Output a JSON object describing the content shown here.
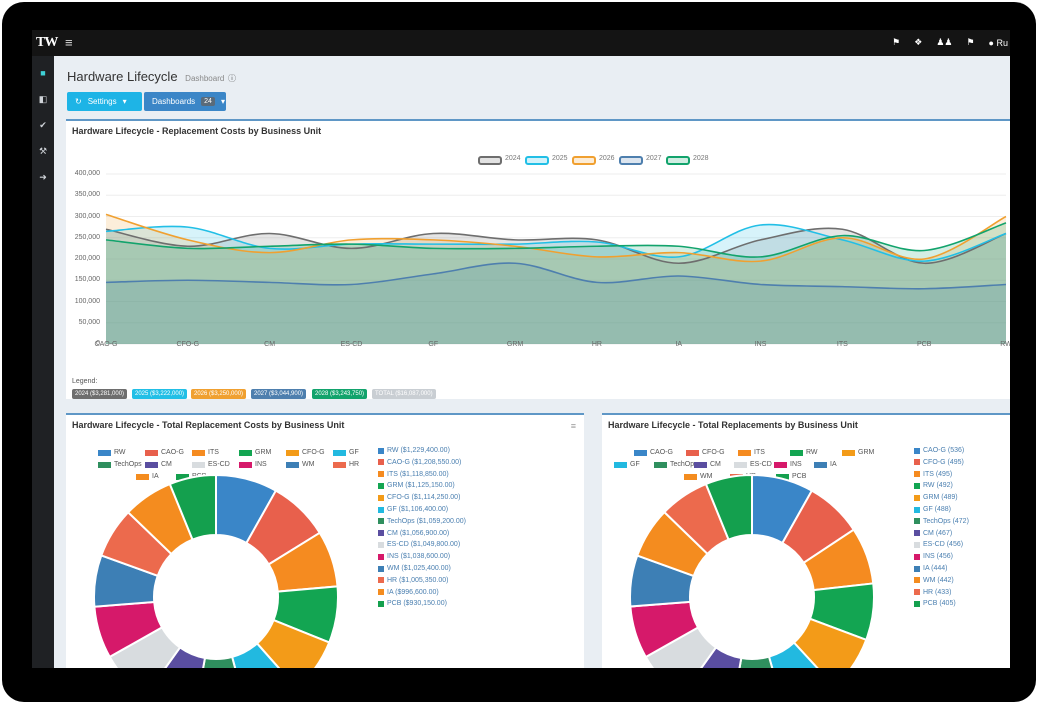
{
  "app": {
    "logo": "TW",
    "menu_icon": "hamburger-icon"
  },
  "topbar": {
    "user": "Ru"
  },
  "page": {
    "title": "Hardware Lifecycle",
    "subtitle": "Dashboard"
  },
  "toolbar": {
    "settings_label": "Settings",
    "dashboards_label": "Dashboards",
    "dashboards_count": "24"
  },
  "line_panel": {
    "title": "Hardware Lifecycle - Replacement Costs by Business Unit",
    "legend_label": "Legend:",
    "totals": [
      "2024 ($3,281,000)",
      "2025 ($3,222,000)",
      "2026 ($3,250,000)",
      "2027 ($3,044,900)",
      "2028 ($3,243,750)",
      "TOTAL ($16,087,000)"
    ]
  },
  "donut_left": {
    "title": "Hardware Lifecycle - Total Replacement Costs by Business Unit",
    "list": [
      "RW ($1,229,400.00)",
      "CAO-G ($1,208,550.00)",
      "ITS ($1,118,850.00)",
      "GRM ($1,125,150.00)",
      "CFO-G ($1,114,250.00)",
      "GF ($1,106,400.00)",
      "TechOps ($1,059,200.00)",
      "CM ($1,056,900.00)",
      "ES-CD ($1,049,800.00)",
      "INS ($1,038,600.00)",
      "WM ($1,025,400.00)",
      "HR ($1,005,350.00)",
      "IA ($996,600.00)",
      "PCB ($930,150.00)"
    ]
  },
  "donut_right": {
    "title": "Hardware Lifecycle - Total Replacements by Business Unit",
    "list": [
      "CAO-G (536)",
      "CFO-G (495)",
      "ITS (495)",
      "RW (492)",
      "GRM (489)",
      "GF (488)",
      "TechOps (472)",
      "CM (467)",
      "ES-CD (456)",
      "INS (456)",
      "IA (444)",
      "WM (442)",
      "HR (433)",
      "PCB (405)"
    ]
  },
  "colors": {
    "accent": "#1eb4e6",
    "primary": "#3b86c7",
    "header_rule": "#5f97c6"
  },
  "chart_data": [
    {
      "type": "area",
      "title": "Hardware Lifecycle - Replacement Costs by Business Unit",
      "categories": [
        "CAO-G",
        "CFO-G",
        "CM",
        "ES-CD",
        "GF",
        "GRM",
        "HR",
        "IA",
        "INS",
        "ITS",
        "PCB",
        "RW"
      ],
      "ylim": [
        0,
        400000
      ],
      "yticks": [
        "0",
        "50,000",
        "100,000",
        "150,000",
        "200,000",
        "250,000",
        "300,000",
        "350,000",
        "400,000"
      ],
      "legend_position": "top",
      "series": [
        {
          "name": "2024",
          "color": "#6e6e6e",
          "values": [
            270000,
            230000,
            260000,
            225000,
            260000,
            245000,
            245000,
            190000,
            245000,
            270000,
            190000,
            260000
          ]
        },
        {
          "name": "2025",
          "color": "#22bfe6",
          "values": [
            265000,
            275000,
            225000,
            235000,
            235000,
            235000,
            240000,
            205000,
            280000,
            245000,
            195000,
            260000
          ]
        },
        {
          "name": "2026",
          "color": "#f0a030",
          "values": [
            305000,
            245000,
            215000,
            245000,
            245000,
            230000,
            205000,
            215000,
            195000,
            250000,
            200000,
            300000
          ]
        },
        {
          "name": "2027",
          "color": "#4e7fae",
          "values": [
            145000,
            150000,
            145000,
            140000,
            165000,
            190000,
            145000,
            160000,
            140000,
            135000,
            130000,
            140000
          ]
        },
        {
          "name": "2028",
          "color": "#12a36c",
          "values": [
            245000,
            225000,
            230000,
            235000,
            225000,
            225000,
            230000,
            230000,
            205000,
            255000,
            220000,
            285000
          ]
        }
      ]
    },
    {
      "type": "pie",
      "title": "Hardware Lifecycle - Total Replacement Costs by Business Unit",
      "labels": [
        "RW",
        "CAO-G",
        "ITS",
        "GRM",
        "CFO-G",
        "GF",
        "TechOps",
        "CM",
        "ES-CD",
        "INS",
        "WM",
        "HR",
        "IA",
        "PCB"
      ],
      "values": [
        1229400,
        1208550,
        1118850,
        1125150,
        1114250,
        1106400,
        1059200,
        1056900,
        1049800,
        1038600,
        1025400,
        1005350,
        996600,
        930150
      ],
      "colors": [
        "#3a86c8",
        "#e8604c",
        "#f58b20",
        "#13a552",
        "#f39b18",
        "#22b9e0",
        "#2f8f5e",
        "#5a4ea0",
        "#d8dcdf",
        "#d6196a",
        "#3d7fb5",
        "#ec6a4d",
        "#f48c1f",
        "#14a04e"
      ]
    },
    {
      "type": "pie",
      "title": "Hardware Lifecycle - Total Replacements by Business Unit",
      "labels": [
        "CAO-G",
        "CFO-G",
        "ITS",
        "RW",
        "GRM",
        "GF",
        "TechOps",
        "CM",
        "ES-CD",
        "INS",
        "IA",
        "WM",
        "HR",
        "PCB"
      ],
      "values": [
        536,
        495,
        495,
        492,
        489,
        488,
        472,
        467,
        456,
        456,
        444,
        442,
        433,
        405
      ],
      "colors": [
        "#3a86c8",
        "#e8604c",
        "#f58b20",
        "#13a552",
        "#f39b18",
        "#22b9e0",
        "#2f8f5e",
        "#5a4ea0",
        "#d8dcdf",
        "#d6196a",
        "#3d7fb5",
        "#f48c1f",
        "#ec6a4d",
        "#14a04e"
      ]
    }
  ]
}
